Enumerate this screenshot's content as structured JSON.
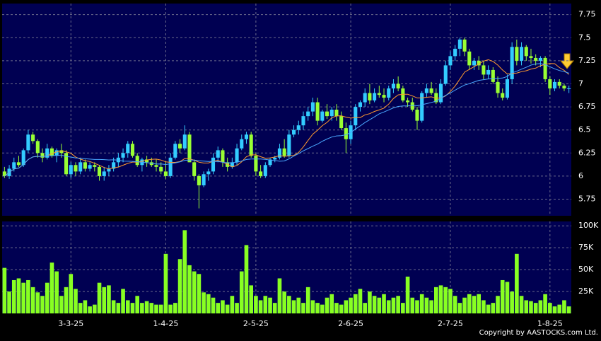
{
  "chart_data": {
    "type": "candlestick",
    "up_color": "#33ccff",
    "down_color": "#99ff33",
    "volume_color": "#88ff22",
    "panel_color": "#000052",
    "moving_averages": [
      {
        "period": 10,
        "color": "#ff9a2e"
      },
      {
        "period": 20,
        "color": "#4aa8ff"
      }
    ],
    "copyright": "Copyright by AASTOCKS.com Ltd.",
    "ylim": [
      5.57,
      7.87
    ],
    "yticks": [
      5.75,
      6,
      6.25,
      6.5,
      6.75,
      7,
      7.25,
      7.5,
      7.75
    ],
    "volume_ylim": [
      0,
      105000
    ],
    "volume_ticks": [
      {
        "value": 25000,
        "label": "25K"
      },
      {
        "value": 50000,
        "label": "50K"
      },
      {
        "value": 75000,
        "label": "75K"
      },
      {
        "value": 100000,
        "label": "100K"
      }
    ],
    "categories": [
      null,
      null,
      null,
      null,
      null,
      null,
      null,
      null,
      null,
      null,
      null,
      null,
      null,
      null,
      "3-3-25",
      null,
      null,
      null,
      null,
      null,
      null,
      null,
      null,
      null,
      null,
      null,
      null,
      null,
      null,
      null,
      null,
      null,
      null,
      null,
      "1-4-25",
      null,
      null,
      null,
      null,
      null,
      null,
      null,
      null,
      null,
      null,
      null,
      null,
      null,
      null,
      null,
      null,
      null,
      null,
      "2-5-25",
      null,
      null,
      null,
      null,
      null,
      null,
      null,
      null,
      null,
      null,
      null,
      null,
      null,
      null,
      null,
      null,
      null,
      null,
      null,
      "2-6-25",
      null,
      null,
      null,
      null,
      null,
      null,
      null,
      null,
      null,
      null,
      null,
      null,
      null,
      null,
      null,
      null,
      null,
      null,
      null,
      null,
      "2-7-25",
      null,
      null,
      null,
      null,
      null,
      null,
      null,
      null,
      null,
      null,
      null,
      null,
      null,
      null,
      null,
      null,
      null,
      null,
      null,
      null,
      "1-8-25",
      null,
      null,
      null,
      null
    ],
    "candles": [
      [
        6.05,
        6.1,
        5.98,
        6.0
      ],
      [
        6.0,
        6.12,
        5.97,
        6.08
      ],
      [
        6.08,
        6.2,
        6.05,
        6.15
      ],
      [
        6.15,
        6.22,
        6.1,
        6.12
      ],
      [
        6.12,
        6.3,
        6.1,
        6.28
      ],
      [
        6.28,
        6.5,
        6.25,
        6.45
      ],
      [
        6.45,
        6.48,
        6.35,
        6.38
      ],
      [
        6.38,
        6.4,
        6.2,
        6.25
      ],
      [
        6.25,
        6.3,
        6.15,
        6.2
      ],
      [
        6.2,
        6.35,
        6.18,
        6.3
      ],
      [
        6.3,
        6.32,
        6.2,
        6.22
      ],
      [
        6.22,
        6.3,
        6.15,
        6.28
      ],
      [
        6.28,
        6.35,
        6.2,
        6.25
      ],
      [
        6.25,
        6.28,
        6.0,
        6.02
      ],
      [
        6.02,
        6.15,
        5.98,
        6.12
      ],
      [
        6.12,
        6.15,
        6.0,
        6.05
      ],
      [
        6.05,
        6.2,
        6.02,
        6.15
      ],
      [
        6.15,
        6.18,
        6.05,
        6.08
      ],
      [
        6.08,
        6.15,
        6.05,
        6.12
      ],
      [
        6.12,
        6.15,
        6.05,
        6.1
      ],
      [
        6.1,
        6.12,
        5.95,
        6.0
      ],
      [
        6.0,
        6.1,
        5.95,
        6.05
      ],
      [
        6.05,
        6.12,
        6.0,
        6.08
      ],
      [
        6.08,
        6.2,
        6.05,
        6.15
      ],
      [
        6.15,
        6.25,
        6.1,
        6.2
      ],
      [
        6.2,
        6.3,
        6.15,
        6.25
      ],
      [
        6.25,
        6.38,
        6.2,
        6.35
      ],
      [
        6.35,
        6.38,
        6.2,
        6.22
      ],
      [
        6.22,
        6.25,
        6.1,
        6.12
      ],
      [
        6.12,
        6.2,
        6.05,
        6.18
      ],
      [
        6.18,
        6.22,
        6.1,
        6.15
      ],
      [
        6.15,
        6.2,
        6.1,
        6.12
      ],
      [
        6.12,
        6.18,
        6.05,
        6.1
      ],
      [
        6.1,
        6.15,
        6.02,
        6.05
      ],
      [
        6.05,
        6.15,
        5.97,
        6.0
      ],
      [
        6.0,
        6.25,
        5.98,
        6.2
      ],
      [
        6.2,
        6.38,
        6.18,
        6.35
      ],
      [
        6.35,
        6.4,
        6.25,
        6.3
      ],
      [
        6.3,
        6.55,
        6.28,
        6.45
      ],
      [
        6.45,
        6.48,
        6.15,
        6.15
      ],
      [
        6.15,
        6.18,
        5.95,
        6.0
      ],
      [
        6.0,
        6.02,
        5.65,
        5.9
      ],
      [
        5.9,
        6.05,
        5.88,
        6.02
      ],
      [
        6.02,
        6.08,
        5.95,
        6.05
      ],
      [
        6.05,
        6.25,
        6.02,
        6.2
      ],
      [
        6.2,
        6.32,
        6.15,
        6.28
      ],
      [
        6.28,
        6.3,
        6.1,
        6.15
      ],
      [
        6.15,
        6.2,
        6.05,
        6.1
      ],
      [
        6.1,
        6.2,
        6.08,
        6.15
      ],
      [
        6.15,
        6.35,
        6.12,
        6.3
      ],
      [
        6.3,
        6.45,
        6.28,
        6.4
      ],
      [
        6.4,
        6.48,
        6.35,
        6.45
      ],
      [
        6.45,
        6.48,
        6.2,
        6.22
      ],
      [
        6.22,
        6.25,
        6.0,
        6.05
      ],
      [
        6.05,
        6.12,
        5.98,
        6.0
      ],
      [
        6.0,
        6.15,
        5.98,
        6.12
      ],
      [
        6.12,
        6.2,
        6.1,
        6.18
      ],
      [
        6.18,
        6.22,
        6.15,
        6.2
      ],
      [
        6.2,
        6.35,
        6.18,
        6.3
      ],
      [
        6.3,
        6.4,
        6.2,
        6.22
      ],
      [
        6.22,
        6.5,
        6.2,
        6.45
      ],
      [
        6.45,
        6.55,
        6.42,
        6.5
      ],
      [
        6.5,
        6.6,
        6.45,
        6.55
      ],
      [
        6.55,
        6.7,
        6.5,
        6.65
      ],
      [
        6.65,
        6.75,
        6.6,
        6.7
      ],
      [
        6.7,
        6.85,
        6.65,
        6.8
      ],
      [
        6.8,
        6.85,
        6.55,
        6.6
      ],
      [
        6.6,
        6.72,
        6.58,
        6.7
      ],
      [
        6.7,
        6.78,
        6.62,
        6.65
      ],
      [
        6.65,
        6.75,
        6.6,
        6.72
      ],
      [
        6.72,
        6.78,
        6.6,
        6.65
      ],
      [
        6.65,
        6.7,
        6.5,
        6.52
      ],
      [
        6.52,
        6.58,
        6.25,
        6.4
      ],
      [
        6.4,
        6.6,
        6.35,
        6.55
      ],
      [
        6.55,
        6.78,
        6.5,
        6.75
      ],
      [
        6.75,
        6.82,
        6.7,
        6.8
      ],
      [
        6.8,
        6.95,
        6.75,
        6.9
      ],
      [
        6.9,
        7.0,
        6.78,
        6.82
      ],
      [
        6.82,
        6.95,
        6.8,
        6.9
      ],
      [
        6.9,
        6.98,
        6.85,
        6.88
      ],
      [
        6.88,
        6.95,
        6.8,
        6.85
      ],
      [
        6.85,
        6.98,
        6.82,
        6.95
      ],
      [
        6.95,
        7.05,
        6.9,
        7.0
      ],
      [
        7.0,
        7.08,
        6.92,
        6.95
      ],
      [
        6.95,
        6.98,
        6.8,
        6.82
      ],
      [
        6.82,
        6.85,
        6.75,
        6.8
      ],
      [
        6.8,
        6.85,
        6.7,
        6.72
      ],
      [
        6.72,
        6.75,
        6.5,
        6.6
      ],
      [
        6.6,
        6.92,
        6.58,
        6.9
      ],
      [
        6.9,
        7.0,
        6.85,
        6.95
      ],
      [
        6.95,
        7.02,
        6.88,
        6.9
      ],
      [
        6.9,
        6.95,
        6.78,
        6.8
      ],
      [
        6.8,
        7.05,
        6.78,
        7.0
      ],
      [
        7.0,
        7.25,
        6.98,
        7.2
      ],
      [
        7.2,
        7.35,
        7.15,
        7.3
      ],
      [
        7.3,
        7.42,
        7.25,
        7.38
      ],
      [
        7.38,
        7.5,
        7.3,
        7.48
      ],
      [
        7.48,
        7.5,
        7.3,
        7.35
      ],
      [
        7.35,
        7.38,
        7.15,
        7.2
      ],
      [
        7.2,
        7.28,
        7.15,
        7.25
      ],
      [
        7.25,
        7.3,
        7.15,
        7.2
      ],
      [
        7.2,
        7.25,
        7.05,
        7.1
      ],
      [
        7.1,
        7.2,
        7.05,
        7.15
      ],
      [
        7.15,
        7.18,
        7.0,
        7.02
      ],
      [
        7.02,
        7.08,
        6.85,
        6.9
      ],
      [
        6.9,
        6.95,
        6.82,
        6.85
      ],
      [
        6.85,
        7.1,
        6.83,
        7.05
      ],
      [
        7.05,
        7.45,
        7.0,
        7.4
      ],
      [
        7.4,
        7.48,
        7.2,
        7.25
      ],
      [
        7.25,
        7.45,
        7.2,
        7.4
      ],
      [
        7.4,
        7.42,
        7.25,
        7.3
      ],
      [
        7.3,
        7.38,
        7.22,
        7.28
      ],
      [
        7.28,
        7.32,
        7.2,
        7.25
      ],
      [
        7.25,
        7.3,
        7.18,
        7.28
      ],
      [
        7.28,
        7.3,
        7.02,
        7.05
      ],
      [
        7.05,
        7.08,
        6.88,
        6.95
      ],
      [
        6.95,
        7.05,
        6.92,
        7.02
      ],
      [
        7.02,
        7.05,
        6.95,
        6.98
      ],
      [
        6.98,
        7.0,
        6.92,
        6.95
      ],
      [
        6.95,
        6.98,
        6.9,
        6.95
      ]
    ],
    "volumes": [
      52000,
      25000,
      38000,
      40000,
      35000,
      38000,
      30000,
      24000,
      20000,
      35000,
      58000,
      48000,
      20000,
      30000,
      45000,
      28000,
      12000,
      15000,
      8000,
      10000,
      35000,
      30000,
      32000,
      15000,
      12000,
      28000,
      15000,
      12000,
      20000,
      12000,
      14000,
      12000,
      10000,
      10000,
      68000,
      10000,
      12000,
      62000,
      95000,
      55000,
      48000,
      45000,
      24000,
      22000,
      18000,
      12000,
      15000,
      10000,
      20000,
      12000,
      48000,
      78000,
      32000,
      20000,
      15000,
      20000,
      18000,
      12000,
      40000,
      25000,
      20000,
      15000,
      18000,
      12000,
      30000,
      15000,
      12000,
      10000,
      18000,
      22000,
      12000,
      10000,
      15000,
      18000,
      22000,
      28000,
      12000,
      25000,
      20000,
      18000,
      22000,
      15000,
      18000,
      20000,
      12000,
      42000,
      18000,
      15000,
      22000,
      18000,
      15000,
      30000,
      32000,
      30000,
      28000,
      20000,
      12000,
      18000,
      22000,
      20000,
      22000,
      15000,
      10000,
      12000,
      20000,
      38000,
      36000,
      25000,
      68000,
      20000,
      15000,
      14000,
      12000,
      15000,
      22000,
      12000,
      8000,
      10000,
      15000,
      8000
    ]
  }
}
